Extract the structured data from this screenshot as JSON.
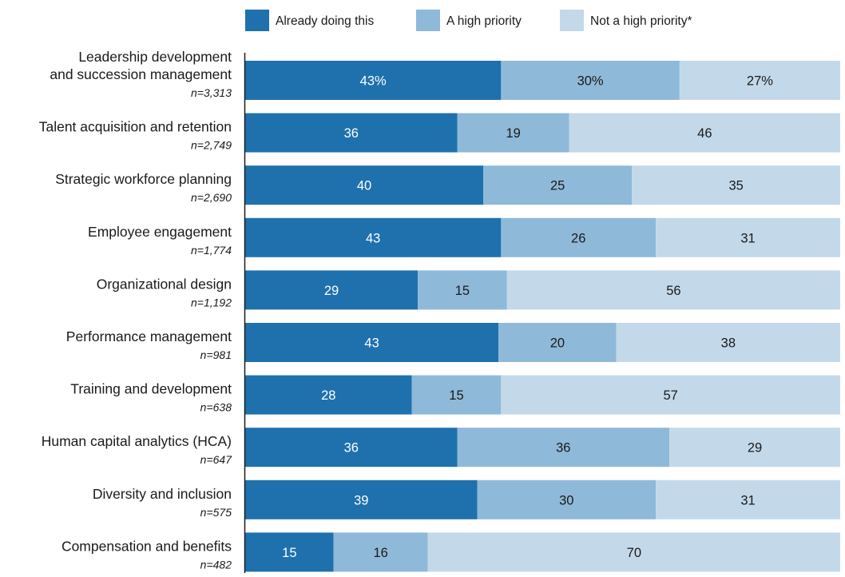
{
  "chart_data": {
    "type": "bar",
    "orientation": "horizontal",
    "stacked": true,
    "legend_position": "top",
    "xlim": [
      0,
      100
    ],
    "grid": false,
    "categories": [
      "Leadership development and succession management",
      "Talent acquisition and retention",
      "Strategic workforce planning",
      "Employee engagement",
      "Organizational design",
      "Performance management",
      "Training and development",
      "Human capital analytics (HCA)",
      "Diversity and inclusion",
      "Compensation and benefits"
    ],
    "category_label_lines": [
      [
        "Leadership development",
        "and succession management"
      ],
      [
        "Talent acquisition and retention"
      ],
      [
        "Strategic workforce planning"
      ],
      [
        "Employee engagement"
      ],
      [
        "Organizational design"
      ],
      [
        "Performance management"
      ],
      [
        "Training and development"
      ],
      [
        "Human capital analytics (HCA)"
      ],
      [
        "Diversity and inclusion"
      ],
      [
        "Compensation and benefits"
      ]
    ],
    "sample_sizes": [
      "n=3,313",
      "n=2,749",
      "n=2,690",
      "n=1,774",
      "n=1,192",
      "n=981",
      "n=638",
      "n=647",
      "n=575",
      "n=482"
    ],
    "series": [
      {
        "name": "Already doing this",
        "color": "#1f71ad",
        "values": [
          43,
          36,
          40,
          43,
          29,
          43,
          28,
          36,
          39,
          15
        ],
        "labels": [
          "43%",
          "36",
          "40",
          "43",
          "29",
          "43",
          "28",
          "36",
          "39",
          "15"
        ]
      },
      {
        "name": "A high priority",
        "color": "#8fb9d9",
        "values": [
          30,
          19,
          25,
          26,
          15,
          20,
          15,
          36,
          30,
          16
        ],
        "labels": [
          "30%",
          "19",
          "25",
          "26",
          "15",
          "20",
          "15",
          "36",
          "30",
          "16"
        ]
      },
      {
        "name": "Not a high priority*",
        "color": "#c3d9e9",
        "values": [
          27,
          46,
          35,
          31,
          56,
          38,
          57,
          29,
          31,
          70
        ],
        "labels": [
          "27%",
          "46",
          "35",
          "31",
          "56",
          "38",
          "57",
          "29",
          "31",
          "70"
        ]
      }
    ],
    "label_colors": [
      "#ffffff",
      "#1a1a1a",
      "#1a1a1a"
    ],
    "axis_color": "#1a1a1a"
  }
}
